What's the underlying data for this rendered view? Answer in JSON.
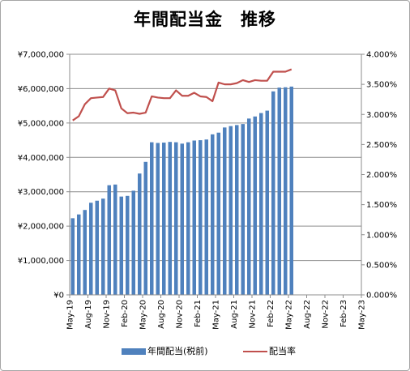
{
  "chart_data": {
    "type": "bar",
    "title": "年間配当金　推移",
    "x_ticks": [
      "May-19",
      "Aug-19",
      "Nov-19",
      "Feb-20",
      "May-20",
      "Aug-20",
      "Nov-20",
      "Feb-21",
      "May-21",
      "Aug-21",
      "Nov-21",
      "Feb-22",
      "May-22",
      "Aug-22",
      "Nov-22",
      "Feb-23",
      "May-23"
    ],
    "y_left_ticks": [
      "¥0",
      "¥1,000,000",
      "¥2,000,000",
      "¥3,000,000",
      "¥4,000,000",
      "¥5,000,000",
      "¥6,000,000",
      "¥7,000,000"
    ],
    "y_right_ticks": [
      "0.000%",
      "0.500%",
      "1.000%",
      "1.500%",
      "2.000%",
      "2.500%",
      "3.000%",
      "3.500%",
      "4.000%"
    ],
    "ylim_left": [
      0,
      7000000
    ],
    "ylim_right": [
      0,
      4
    ],
    "x_range": [
      "May-19",
      "May-23"
    ],
    "grid": "horizontal",
    "legend_position": "bottom",
    "series": [
      {
        "name": "年間配当(税前)",
        "kind": "bar",
        "axis": "left",
        "color": "#4f81bd",
        "values": [
          2230000,
          2340000,
          2470000,
          2680000,
          2740000,
          2800000,
          3190000,
          3210000,
          2860000,
          2880000,
          3030000,
          3530000,
          3870000,
          4440000,
          4420000,
          4430000,
          4450000,
          4440000,
          4400000,
          4440000,
          4490000,
          4500000,
          4520000,
          4670000,
          4720000,
          4870000,
          4910000,
          4940000,
          4970000,
          5130000,
          5190000,
          5290000,
          5360000,
          5920000,
          6030000,
          6040000,
          6060000
        ]
      },
      {
        "name": "配当率",
        "kind": "line",
        "axis": "right",
        "color": "#c0504d",
        "values": [
          2.9,
          2.97,
          3.17,
          3.27,
          3.28,
          3.29,
          3.43,
          3.4,
          3.1,
          3.02,
          3.03,
          3.01,
          3.03,
          3.3,
          3.28,
          3.27,
          3.27,
          3.4,
          3.31,
          3.31,
          3.36,
          3.3,
          3.29,
          3.22,
          3.53,
          3.5,
          3.5,
          3.52,
          3.57,
          3.54,
          3.57,
          3.56,
          3.56,
          3.71,
          3.71,
          3.71,
          3.75
        ]
      }
    ]
  }
}
